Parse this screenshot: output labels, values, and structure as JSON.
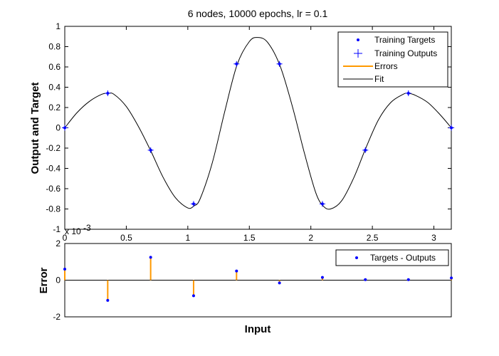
{
  "chart_data": [
    {
      "type": "line",
      "title": "6 nodes, 10000 epochs, lr = 0.1",
      "xlabel": "",
      "ylabel": "Output and Target",
      "xlim": [
        0,
        3.1416
      ],
      "ylim": [
        -1,
        1
      ],
      "x_ticks": [
        0,
        0.5,
        1,
        1.5,
        2,
        2.5,
        3
      ],
      "x_tick_labels": [
        "0",
        "0.5",
        "1",
        "1.5",
        "2",
        "2.5",
        "3"
      ],
      "y_ticks": [
        -1,
        -0.8,
        -0.6,
        -0.4,
        -0.2,
        0,
        0.2,
        0.4,
        0.6,
        0.8,
        1
      ],
      "y_tick_labels": [
        "-1",
        "-0.8",
        "-0.6",
        "-0.4",
        "-0.2",
        "0",
        "0.2",
        "0.4",
        "0.6",
        "0.8",
        "1"
      ],
      "x_exponent_label": "x 10",
      "x_exponent_power": "-3",
      "legend": [
        "Training Targets",
        "Training Outputs",
        "Errors",
        "Fit"
      ],
      "legend_position": "top-right",
      "grid": false,
      "series": [
        {
          "name": "Training Targets",
          "style": "points",
          "color": "#0000ff",
          "x": [
            0,
            0.349,
            0.698,
            1.047,
            1.396,
            1.745,
            2.094,
            2.443,
            2.793,
            3.142
          ],
          "y": [
            0,
            0.34,
            -0.22,
            -0.75,
            0.63,
            0.63,
            -0.75,
            -0.22,
            0.34,
            0
          ]
        },
        {
          "name": "Training Outputs",
          "style": "plus",
          "color": "#0000ff",
          "x": [
            0,
            0.349,
            0.698,
            1.047,
            1.396,
            1.745,
            2.094,
            2.443,
            2.793,
            3.142
          ],
          "y": [
            0,
            0.34,
            -0.22,
            -0.75,
            0.63,
            0.63,
            -0.75,
            -0.22,
            0.34,
            0
          ]
        },
        {
          "name": "Fit",
          "style": "line",
          "color": "#000000",
          "x": [
            0,
            0.1,
            0.2,
            0.3,
            0.349,
            0.4,
            0.5,
            0.6,
            0.7,
            0.8,
            0.9,
            1.0,
            1.05,
            1.1,
            1.2,
            1.3,
            1.4,
            1.5,
            1.57,
            1.65,
            1.75,
            1.85,
            1.95,
            2.04,
            2.1,
            2.16,
            2.25,
            2.35,
            2.45,
            2.55,
            2.65,
            2.75,
            2.79,
            2.85,
            2.95,
            3.05,
            3.142
          ],
          "y": [
            0,
            0.15,
            0.26,
            0.33,
            0.34,
            0.33,
            0.21,
            0.01,
            -0.23,
            -0.49,
            -0.69,
            -0.79,
            -0.77,
            -0.7,
            -0.34,
            0.16,
            0.62,
            0.85,
            0.89,
            0.84,
            0.61,
            0.21,
            -0.26,
            -0.64,
            -0.77,
            -0.8,
            -0.72,
            -0.49,
            -0.19,
            0.08,
            0.25,
            0.33,
            0.34,
            0.32,
            0.25,
            0.13,
            0
          ]
        }
      ]
    },
    {
      "type": "bar",
      "title": "",
      "xlabel": "Input",
      "ylabel": "Error",
      "xlim": [
        0,
        3.1416
      ],
      "ylim": [
        -2,
        2
      ],
      "y_ticks": [
        -2,
        0,
        2
      ],
      "y_tick_labels": [
        "-2",
        "0",
        "2"
      ],
      "legend": [
        "Targets - Outputs"
      ],
      "legend_position": "top-right",
      "grid": false,
      "series": [
        {
          "name": "Targets - Outputs",
          "style": "stem",
          "marker_color": "#0000ff",
          "stem_color": "#ff9900",
          "x": [
            0,
            0.349,
            0.698,
            1.047,
            1.396,
            1.745,
            2.094,
            2.443,
            2.793,
            3.142
          ],
          "y": [
            0.6,
            -1.1,
            1.25,
            -0.85,
            0.5,
            -0.15,
            0.15,
            0.03,
            0.03,
            0.12
          ]
        }
      ]
    }
  ]
}
